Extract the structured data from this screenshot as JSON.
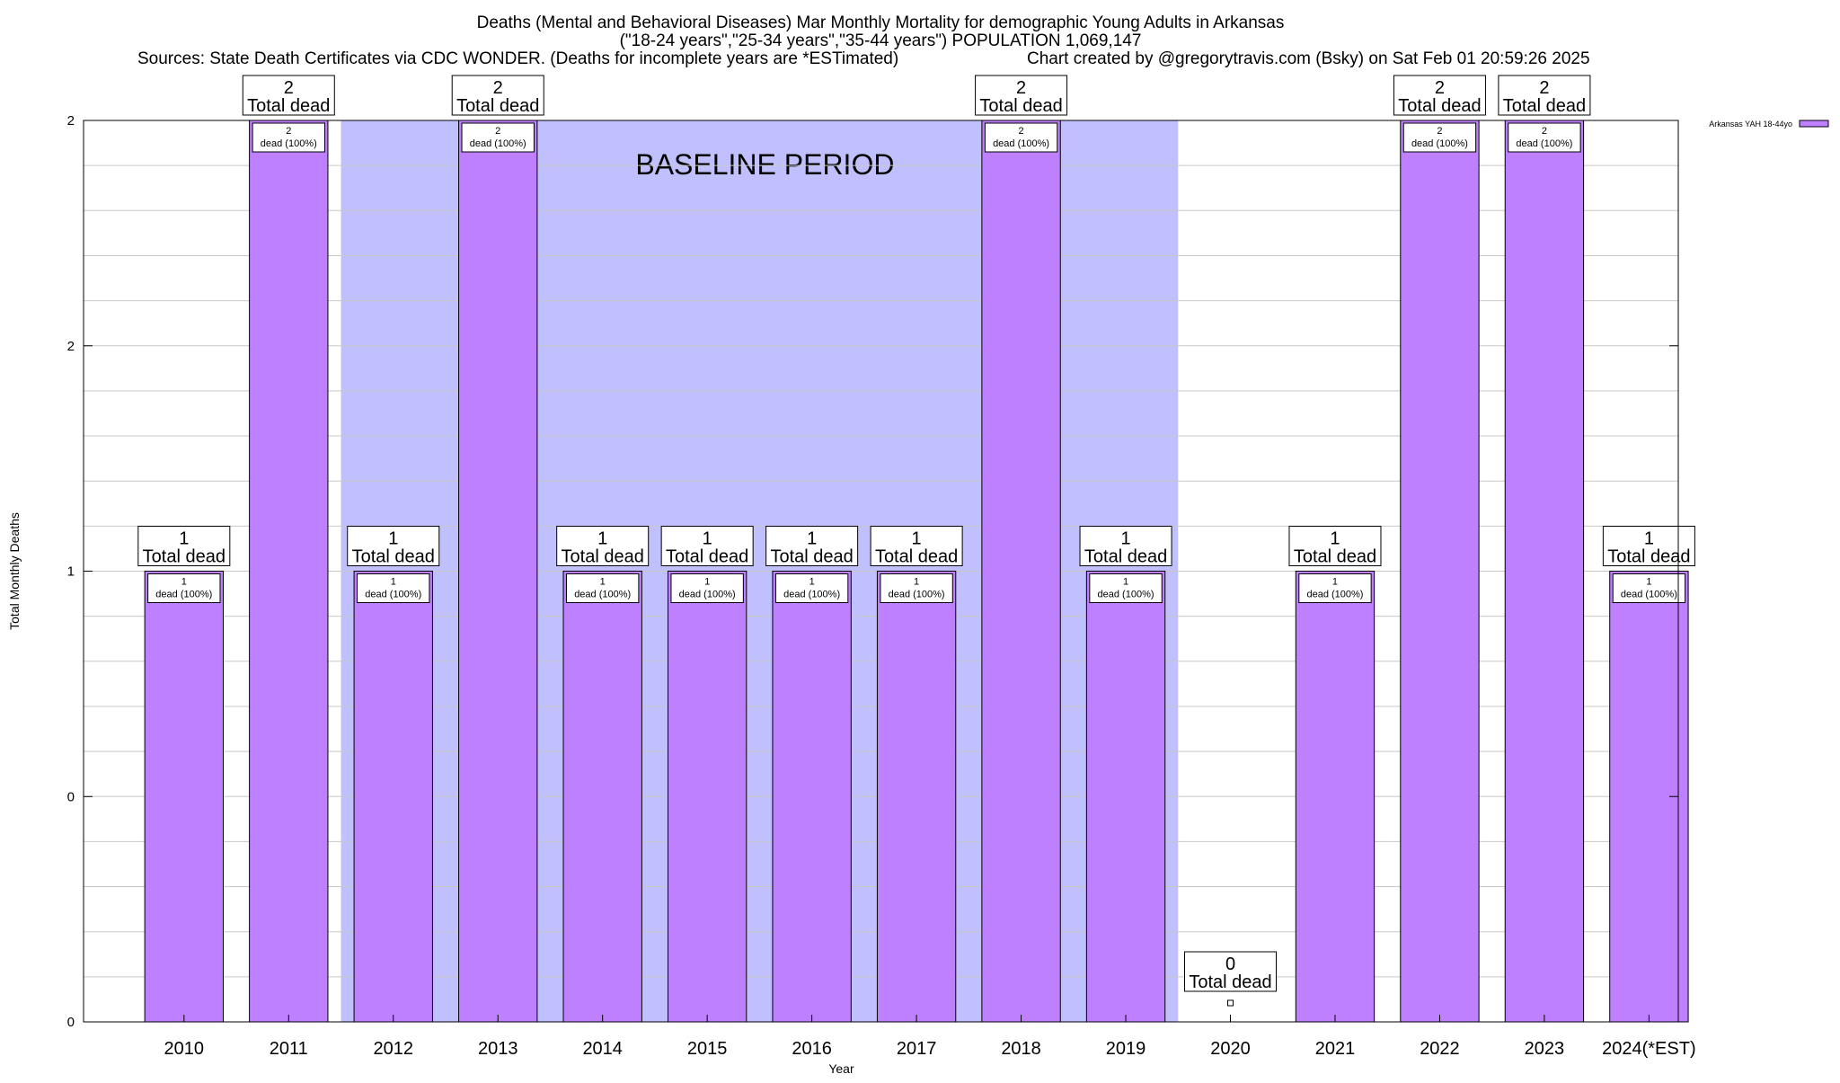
{
  "titles": [
    "Deaths (Mental and Behavioral Diseases) Mar Monthly Mortality for demographic Young Adults in Arkansas",
    "(\"18-24 years\",\"25-34 years\",\"35-44 years\") POPULATION 1,069,147"
  ],
  "sources_text": "Sources: State Death Certificates via CDC WONDER. (Deaths for incomplete years are *ESTimated)",
  "credit_text": "Chart created by @gregorytravis.com (Bsky) on Sat Feb 01 20:59:26 2025",
  "colors": {
    "bar": "#bf80ff",
    "baseline_band": "#c0c0ff",
    "grid": "#c8c8c8"
  },
  "chart_data": {
    "type": "bar",
    "xlabel": "Year",
    "ylabel": "Total Monthly Deaths",
    "ylim": [
      0,
      2
    ],
    "y_tick_values": [
      0,
      0.5,
      1,
      1.5,
      2
    ],
    "y_tick_labels": [
      "0",
      "0",
      "1",
      "2",
      "2"
    ],
    "grid": true,
    "legend_position": "top-right",
    "categories": [
      "2010",
      "2011",
      "2012",
      "2013",
      "2014",
      "2015",
      "2016",
      "2017",
      "2018",
      "2019",
      "2020",
      "2021",
      "2022",
      "2023",
      "2024(*EST)"
    ],
    "series": [
      {
        "name": "Arkansas YAH 18-44yo",
        "values": [
          1,
          2,
          1,
          2,
          1,
          1,
          1,
          1,
          2,
          1,
          0,
          1,
          2,
          2,
          1
        ]
      }
    ],
    "total_labels": [
      "1",
      "2",
      "1",
      "2",
      "1",
      "1",
      "1",
      "1",
      "2",
      "1",
      "0",
      "1",
      "2",
      "2",
      "1"
    ],
    "total_suffix": "Total dead",
    "segment_counts": [
      "1",
      "2",
      "1",
      "2",
      "1",
      "1",
      "1",
      "1",
      "2",
      "1",
      "",
      "1",
      "2",
      "2",
      "1"
    ],
    "segment_text": "dead (100%)",
    "baseline": {
      "label": "BASELINE PERIOD",
      "start_category": "2012",
      "end_category": "2019"
    }
  }
}
